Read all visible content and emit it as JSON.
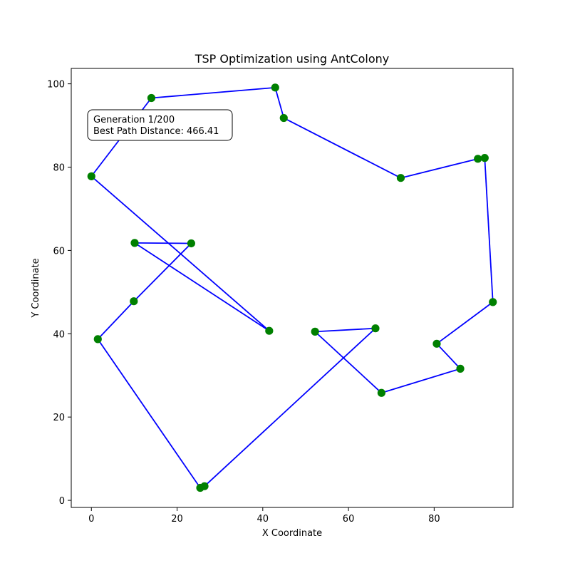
{
  "chart_data": {
    "type": "line",
    "title": "TSP Optimization using AntColony",
    "xlabel": "X Coordinate",
    "ylabel": "Y Coordinate",
    "xlim": [
      -4.7,
      98.4
    ],
    "ylim": [
      -1.7,
      103.7
    ],
    "x_ticks": [
      0,
      20,
      40,
      60,
      80
    ],
    "y_ticks": [
      0,
      20,
      40,
      60,
      80,
      100
    ],
    "grid": false,
    "annotation": {
      "lines": [
        "Generation 1/200",
        "Best Path Distance: 466.41"
      ]
    },
    "path_color": "#0000ff",
    "point_color": "#008000",
    "route": [
      {
        "x": 14.0,
        "y": 96.6
      },
      {
        "x": 42.9,
        "y": 99.1
      },
      {
        "x": 44.9,
        "y": 91.8
      },
      {
        "x": 72.2,
        "y": 77.4
      },
      {
        "x": 90.2,
        "y": 82.0
      },
      {
        "x": 91.8,
        "y": 82.2
      },
      {
        "x": 93.7,
        "y": 47.6
      },
      {
        "x": 80.6,
        "y": 37.6
      },
      {
        "x": 86.1,
        "y": 31.6
      },
      {
        "x": 67.7,
        "y": 25.8
      },
      {
        "x": 52.2,
        "y": 40.5
      },
      {
        "x": 66.3,
        "y": 41.3
      },
      {
        "x": 26.4,
        "y": 3.4
      },
      {
        "x": 25.4,
        "y": 3.0
      },
      {
        "x": 1.5,
        "y": 38.7
      },
      {
        "x": 9.9,
        "y": 47.8
      },
      {
        "x": 23.3,
        "y": 61.7
      },
      {
        "x": 10.1,
        "y": 61.8
      },
      {
        "x": 41.5,
        "y": 40.7
      },
      {
        "x": 0.0,
        "y": 77.8
      },
      {
        "x": 14.0,
        "y": 96.6
      }
    ]
  }
}
